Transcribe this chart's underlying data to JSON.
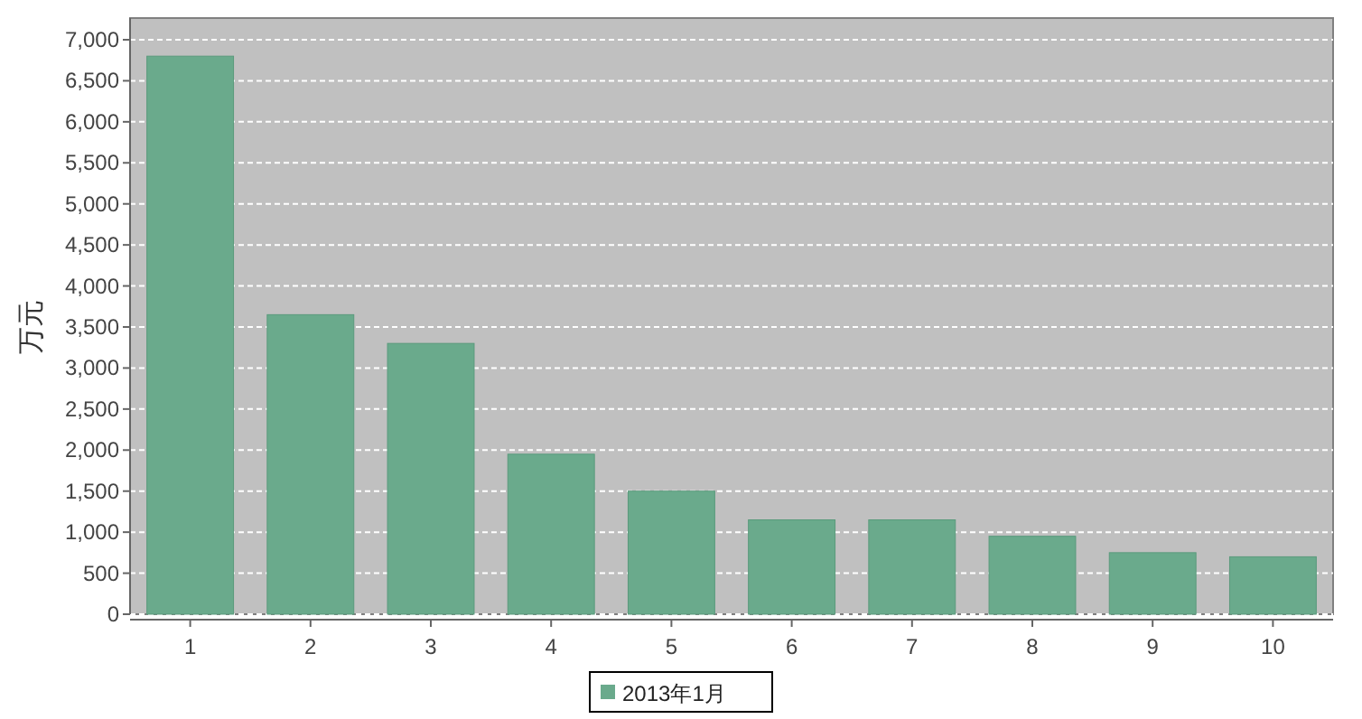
{
  "chart_data": {
    "type": "bar",
    "ylabel": "万元",
    "categories": [
      "1",
      "2",
      "3",
      "4",
      "5",
      "6",
      "7",
      "8",
      "9",
      "10"
    ],
    "series": [
      {
        "name": "2013年1月",
        "color": "#6aaa8c",
        "values": [
          6800,
          3650,
          3300,
          1950,
          1500,
          1150,
          1150,
          950,
          750,
          700
        ]
      }
    ],
    "ylim": [
      0,
      7000
    ],
    "yticks": [
      0,
      500,
      {
        "value": 1000,
        "label": "1,000"
      },
      {
        "value": 1500,
        "label": "1,500"
      },
      {
        "value": 2000,
        "label": "2,000"
      },
      {
        "value": 2500,
        "label": "2,500"
      },
      {
        "value": 3000,
        "label": "3,000"
      },
      {
        "value": 3500,
        "label": "3,500"
      },
      {
        "value": 4000,
        "label": "4,000"
      },
      {
        "value": 4500,
        "label": "4,500"
      },
      {
        "value": 5000,
        "label": "5,000"
      },
      {
        "value": 5500,
        "label": "5,500"
      },
      {
        "value": 6000,
        "label": "6,000"
      },
      {
        "value": 6500,
        "label": "6,500"
      },
      {
        "value": 7000,
        "label": "7,000"
      }
    ],
    "grid": "y",
    "legend": "bottom"
  }
}
